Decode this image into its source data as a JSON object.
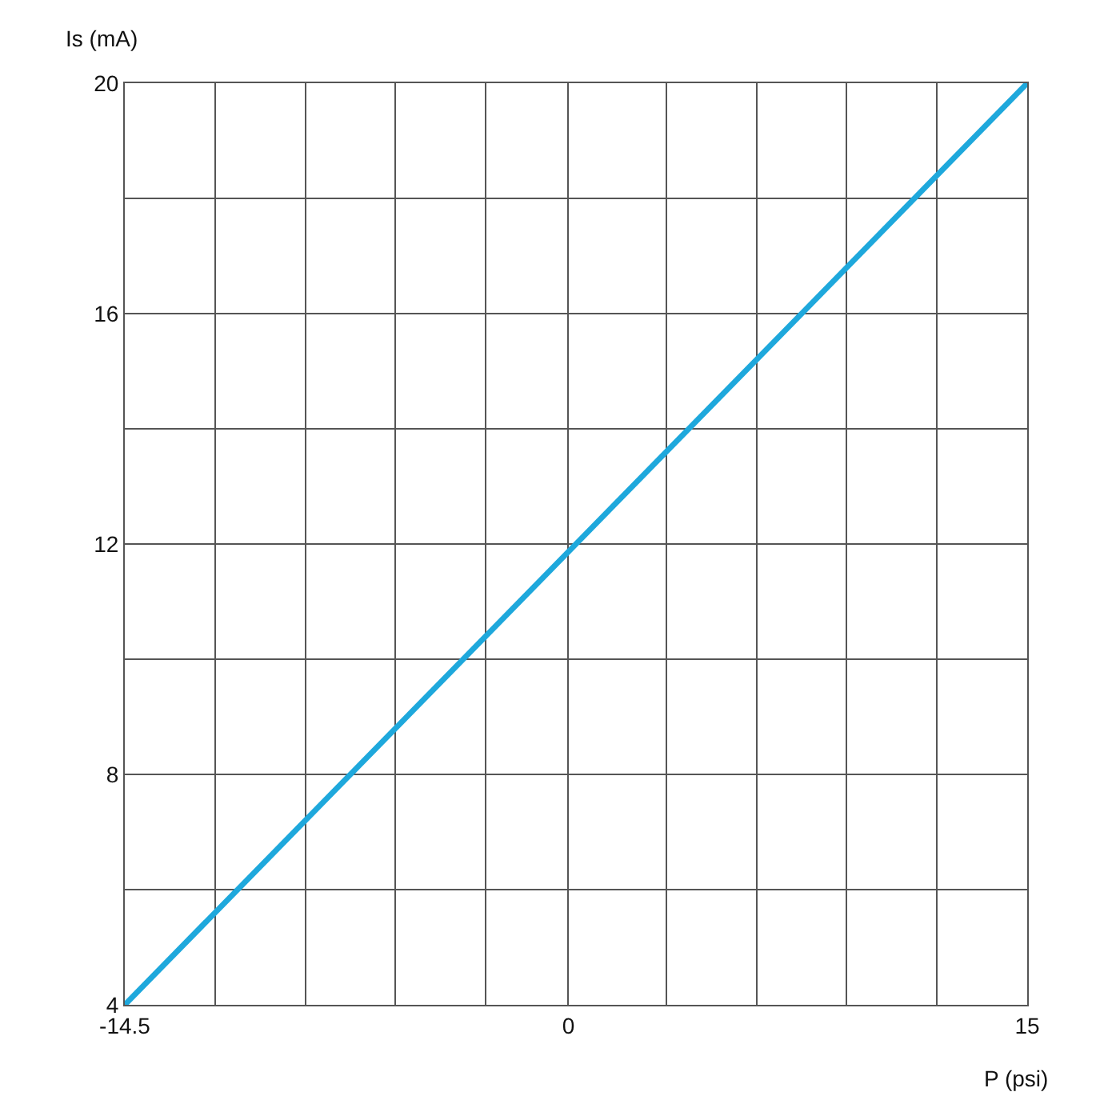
{
  "chart_data": {
    "type": "line",
    "xlabel": "P (psi)",
    "ylabel": "Is (mA)",
    "x": [
      -14.5,
      15
    ],
    "series": [
      {
        "color": "#1ea8dc",
        "values": [
          4,
          20
        ]
      }
    ],
    "xlim": [
      -14.5,
      15
    ],
    "xticks": [
      -14.5,
      {
        "value": -11.55,
        "label": null
      },
      {
        "value": -8.6,
        "label": null
      },
      {
        "value": -5.65,
        "label": null
      },
      {
        "value": -2.7,
        "label": null
      },
      0,
      {
        "value": 3.2,
        "label": null
      },
      {
        "value": 6.15,
        "label": null
      },
      {
        "value": 9.1,
        "label": null
      },
      {
        "value": 12.05,
        "label": null
      },
      15
    ],
    "ylim": [
      4,
      20
    ],
    "yticks": [
      4,
      {
        "value": 6,
        "label": null
      },
      8,
      {
        "value": 10,
        "label": null
      },
      12,
      {
        "value": 14,
        "label": null
      },
      16,
      {
        "value": 18,
        "label": null
      },
      20
    ],
    "grid": true,
    "marker": "none",
    "line_style": "solid"
  }
}
